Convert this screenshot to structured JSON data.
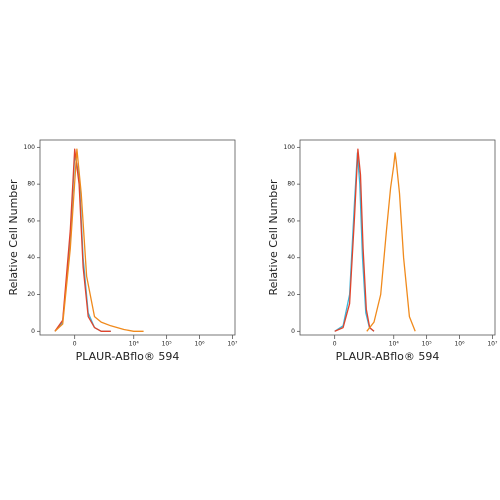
{
  "chart_data": [
    {
      "type": "line",
      "xlabel": "PLAUR-ABflo® 594",
      "ylabel": "Relative Cell Number",
      "xscale": "asinh",
      "xlim": [
        -1800,
        12000000
      ],
      "ylim": [
        -2,
        104
      ],
      "xticks": [
        0,
        {
          "value": 10000,
          "label": "10⁴"
        },
        {
          "value": 100000,
          "label": "10⁵"
        },
        {
          "value": 1000000,
          "label": "10⁶"
        },
        {
          "value": 10000000,
          "label": "10⁷"
        }
      ],
      "yticks": [
        0,
        20,
        40,
        60,
        80,
        100
      ],
      "series": [
        {
          "color": "#3cb4d9",
          "x": [
            -600,
            -300,
            -100,
            0,
            100,
            200,
            350,
            600,
            1000,
            2000
          ],
          "values": [
            0,
            5,
            50,
            96,
            85,
            40,
            10,
            2,
            0,
            0
          ]
        },
        {
          "color": "#e0442c",
          "x": [
            -600,
            -300,
            -100,
            0,
            100,
            200,
            350,
            600,
            1000,
            2000
          ],
          "values": [
            0,
            6,
            55,
            99,
            80,
            35,
            8,
            2,
            0,
            0
          ]
        },
        {
          "color": "#f08a1c",
          "x": [
            -600,
            -300,
            -100,
            50,
            150,
            300,
            600,
            1000,
            2000,
            5000,
            10000,
            20000
          ],
          "values": [
            0,
            4,
            45,
            99,
            75,
            30,
            8,
            5,
            3,
            1,
            0,
            0
          ]
        }
      ]
    },
    {
      "type": "line",
      "xlabel": "PLAUR-ABflo® 594",
      "ylabel": "Relative Cell Number",
      "xscale": "asinh",
      "xlim": [
        -1800,
        12000000
      ],
      "ylim": [
        -2,
        104
      ],
      "xticks": [
        0,
        {
          "value": 10000,
          "label": "10⁴"
        },
        {
          "value": 100000,
          "label": "10⁵"
        },
        {
          "value": 1000000,
          "label": "10⁶"
        },
        {
          "value": 10000000,
          "label": "10⁷"
        }
      ],
      "yticks": [
        0,
        20,
        40,
        60,
        80,
        100
      ],
      "series": [
        {
          "color": "#3cb4d9",
          "x": [
            0,
            200,
            400,
            600,
            750,
            900,
            1100,
            1400,
            1800,
            2500
          ],
          "values": [
            0,
            3,
            20,
            70,
            97,
            80,
            40,
            10,
            2,
            0
          ]
        },
        {
          "color": "#e0442c",
          "x": [
            0,
            200,
            400,
            600,
            780,
            950,
            1150,
            1450,
            1850,
            2500
          ],
          "values": [
            0,
            2,
            15,
            62,
            99,
            85,
            45,
            12,
            2,
            0
          ]
        },
        {
          "color": "#f08a1c",
          "x": [
            1500,
            2500,
            4000,
            6000,
            8000,
            10000,
            11000,
            12000,
            15000,
            20000,
            30000,
            45000
          ],
          "values": [
            0,
            5,
            20,
            55,
            78,
            90,
            97,
            92,
            75,
            40,
            8,
            0
          ]
        }
      ]
    }
  ]
}
